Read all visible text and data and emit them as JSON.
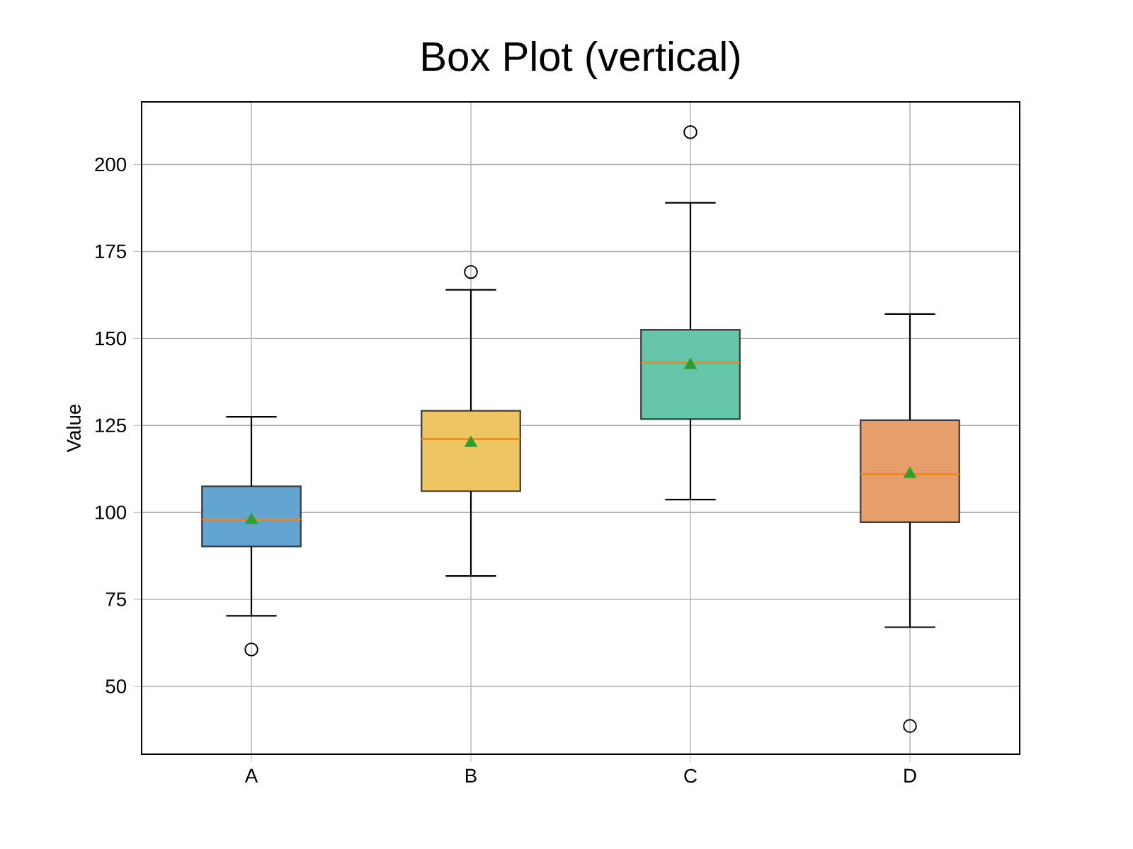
{
  "chart_data": {
    "type": "box",
    "title": "Box Plot (vertical)",
    "ylabel": "Value",
    "categories": [
      "A",
      "B",
      "C",
      "D"
    ],
    "colors": [
      "#62a5d2",
      "#efc462",
      "#66c6a9",
      "#e69f6b"
    ],
    "boxes": [
      {
        "low": 70.3,
        "q1": 90.2,
        "median": 98,
        "q3": 107.5,
        "high": 127.5,
        "mean": 97.8,
        "outliers": [
          60.6
        ]
      },
      {
        "low": 81.7,
        "q1": 106.1,
        "median": 121.1,
        "q3": 129.2,
        "high": 164,
        "mean": 119.9,
        "outliers": [
          169.1
        ]
      },
      {
        "low": 103.7,
        "q1": 126.8,
        "median": 143,
        "q3": 152.5,
        "high": 189,
        "mean": 142.3,
        "outliers": [
          209.3
        ]
      },
      {
        "low": 67,
        "q1": 97.2,
        "median": 111,
        "q3": 126.5,
        "high": 157,
        "mean": 111,
        "outliers": [
          38.6
        ]
      }
    ],
    "ylim": [
      30.5,
      218
    ],
    "yticks": [
      50,
      75,
      100,
      125,
      150,
      175,
      200
    ],
    "grid": true
  }
}
